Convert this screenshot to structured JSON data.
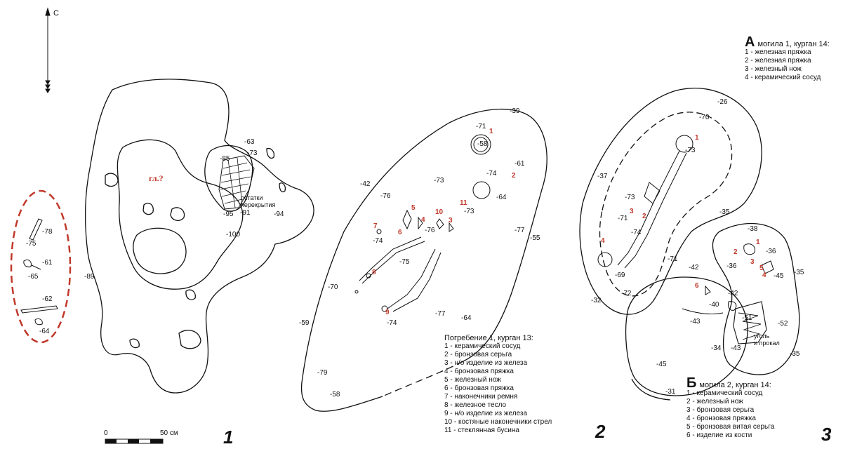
{
  "north": {
    "label": "С",
    "icon": "north-arrow-icon"
  },
  "scale": {
    "zero": "0",
    "end": "50 см"
  },
  "figure_numbers": [
    "1",
    "2",
    "3"
  ],
  "fig1": {
    "center_label": "гл.?",
    "note": [
      "остатки",
      "перекрытия"
    ],
    "depths": [
      "-63",
      "-73",
      "-85",
      "-91",
      "-95",
      "-94",
      "-100",
      "-89",
      "-78",
      "-75",
      "-61",
      "-65",
      "-62",
      "-64"
    ]
  },
  "fig2": {
    "depths": [
      "-39",
      "-71",
      "-58",
      "-61",
      "-74",
      "-73",
      "-64",
      "-73",
      "-42",
      "-76",
      "-76",
      "-74",
      "-75",
      "-77",
      "-55",
      "-70",
      "-59",
      "-77",
      "-64",
      "-74",
      "-79",
      "-58"
    ],
    "finds": [
      "1",
      "2",
      "3",
      "4",
      "5",
      "6",
      "7",
      "8",
      "9",
      "10",
      "11"
    ],
    "legend_title": "Погребение 1, курган 13:",
    "legend_items": [
      "1 - керамический сосуд",
      "2 - бронзовая серьга",
      "3 - н/о изделие из железа",
      "4 - бронзовая пряжка",
      "5 - железный нож",
      "6 - бронзовая пряжка",
      "7 - наконечники ремня",
      "8 - железное тесло",
      "9 - н/о изделие из железа",
      "10 - костяные наконечники стрел",
      "11 - стеклянная бусина"
    ]
  },
  "fig3": {
    "depths": [
      "-26",
      "-70",
      "-73",
      "-37",
      "-73",
      "-71",
      "-74",
      "-69",
      "-72",
      "-32",
      "-35",
      "-38",
      "-36",
      "-36",
      "-45",
      "-35",
      "-71",
      "-42",
      "-42",
      "-40",
      "-43",
      "-51",
      "-52",
      "-34",
      "-43",
      "-35",
      "-45",
      "-31"
    ],
    "finds": [
      "1",
      "2",
      "3",
      "4",
      "1",
      "2",
      "3",
      "4",
      "5",
      "6"
    ],
    "note": [
      "уголь",
      "и прокал"
    ],
    "legend_a_letter": "А",
    "legend_a_title": "могила 1, курган 14:",
    "legend_a_items": [
      "1 - железная пряжка",
      "2 - железная пряжка",
      "3 - железный нож",
      "4 - керамический сосуд"
    ],
    "legend_b_letter": "Б",
    "legend_b_title": "могила 2, курган 14:",
    "legend_b_items": [
      "1 - керамический сосуд",
      "2 - железный нож",
      "3 - бронзовая серьга",
      "4 - бронзовая пряжка",
      "5 - бронзовая витая серьга",
      "6 - изделие из кости"
    ]
  },
  "colors": {
    "ink": "#111111",
    "find_red": "#c0392b",
    "dash_red": "#c0392b"
  }
}
